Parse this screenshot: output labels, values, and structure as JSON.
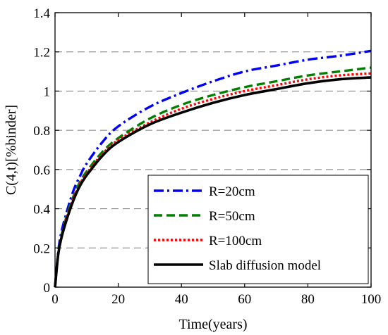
{
  "chart_data": {
    "type": "line",
    "title": "",
    "xlabel": "Time(years)",
    "ylabel": "C(4,t)[%binder]",
    "xlim": [
      0,
      100
    ],
    "ylim": [
      0,
      1.4
    ],
    "xticks": [
      0,
      20,
      40,
      60,
      80,
      100
    ],
    "yticks": [
      0,
      0.2,
      0.4,
      0.6,
      0.8,
      1,
      1.2,
      1.4
    ],
    "xtick_labels": [
      "0",
      "20",
      "40",
      "60",
      "80",
      "100"
    ],
    "ytick_labels": [
      "0",
      "0.2",
      "0.4",
      "0.6",
      "0.8",
      "1",
      "1.2",
      "1.4"
    ],
    "grid": "horizontal dashed",
    "legend_position": "bottom-right",
    "x": [
      0,
      1,
      2,
      4,
      6,
      8,
      10,
      15,
      20,
      30,
      40,
      50,
      60,
      70,
      80,
      90,
      100
    ],
    "series": [
      {
        "name": "R=20cm",
        "color": "#0000ff",
        "style": "dash-dot",
        "values": [
          0,
          0.18,
          0.28,
          0.4,
          0.5,
          0.57,
          0.63,
          0.74,
          0.82,
          0.92,
          0.99,
          1.05,
          1.1,
          1.13,
          1.16,
          1.18,
          1.205
        ]
      },
      {
        "name": "R=50cm",
        "color": "#008000",
        "style": "dashed",
        "values": [
          0,
          0.17,
          0.26,
          0.38,
          0.47,
          0.54,
          0.59,
          0.69,
          0.76,
          0.86,
          0.93,
          0.98,
          1.02,
          1.05,
          1.08,
          1.1,
          1.12
        ]
      },
      {
        "name": "R=100cm",
        "color": "#ff0000",
        "style": "dotted",
        "values": [
          0,
          0.17,
          0.25,
          0.37,
          0.46,
          0.53,
          0.58,
          0.68,
          0.75,
          0.84,
          0.91,
          0.96,
          1.0,
          1.03,
          1.06,
          1.08,
          1.09
        ]
      },
      {
        "name": "Slab diffusion model",
        "color": "#000000",
        "style": "solid",
        "values": [
          0,
          0.165,
          0.25,
          0.36,
          0.45,
          0.52,
          0.57,
          0.67,
          0.74,
          0.83,
          0.89,
          0.94,
          0.98,
          1.01,
          1.04,
          1.06,
          1.07
        ]
      }
    ]
  }
}
